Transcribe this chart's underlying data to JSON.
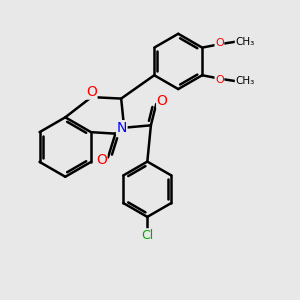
{
  "background_color": "#e8e8e8",
  "bond_color": "#000000",
  "bond_width": 1.8,
  "atom_colors": {
    "O": "#ff0000",
    "N": "#0000ff",
    "Cl": "#00aa00",
    "C": "#000000"
  },
  "font_size_atoms": 9,
  "fig_width": 3.0,
  "fig_height": 3.0,
  "dpi": 100
}
